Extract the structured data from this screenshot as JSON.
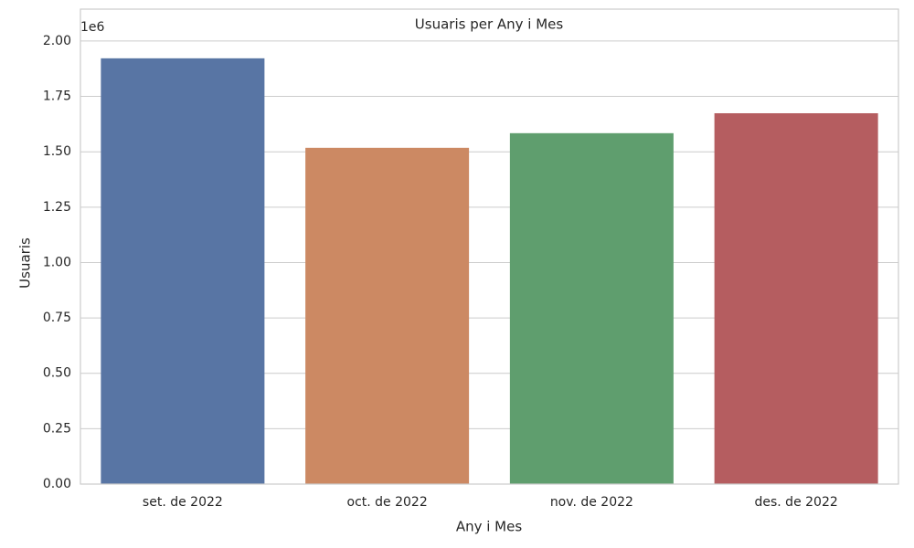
{
  "chart_data": {
    "type": "bar",
    "title": "Usuaris per Any i Mes",
    "x_label": "Any i Mes",
    "y_label": "Usuaris",
    "y_offset_label": "1e6",
    "categories": [
      "set. de 2022",
      "oct. de 2022",
      "nov. de 2022",
      "des. de 2022"
    ],
    "values": [
      1.922,
      1.518,
      1.584,
      1.674
    ],
    "colors": [
      "#5875a4",
      "#cc8963",
      "#5f9e6e",
      "#b55d60"
    ],
    "ylim": [
      0,
      2.144
    ],
    "yticks": [
      {
        "value": 0,
        "label": "0.00"
      },
      0.25,
      {
        "value": 0.5,
        "label": "0.50"
      },
      0.75,
      {
        "value": 1,
        "label": "1.00"
      },
      1.25,
      {
        "value": 1.5,
        "label": "1.50"
      },
      1.75,
      {
        "value": 2,
        "label": "2.00"
      }
    ],
    "grid": true
  }
}
